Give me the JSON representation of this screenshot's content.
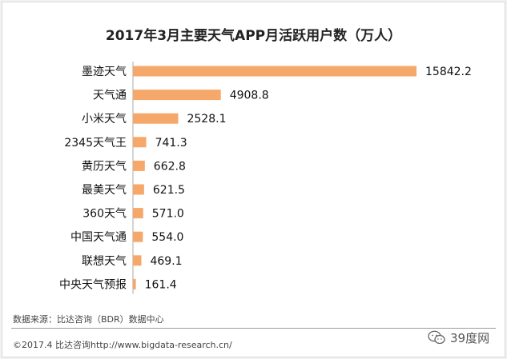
{
  "chart_data": {
    "type": "bar",
    "orientation": "horizontal",
    "title": "2017年3月主要天气APP月活跃用户数（万人）",
    "categories": [
      "墨迹天气",
      "天气通",
      "小米天气",
      "2345天气王",
      "黄历天气",
      "最美天气",
      "360天气",
      "中国天气通",
      "联想天气",
      "中央天气预报"
    ],
    "values": [
      15842.2,
      4908.8,
      2528.1,
      741.3,
      662.8,
      621.5,
      571.0,
      554.0,
      469.1,
      161.4
    ],
    "value_labels": [
      "15842.2",
      "4908.8",
      "2528.1",
      "741.3",
      "662.8",
      "621.5",
      "571.0",
      "554.0",
      "469.1",
      "161.4"
    ],
    "xlim": [
      0,
      15842.2
    ],
    "grid": false,
    "bar_color": "#f5a86a"
  },
  "footer": {
    "source": "数据来源：比达咨询（BDR）数据中心",
    "copyright": "©2017.4    比达咨询http://www.bigdata-research.cn/"
  },
  "watermark": {
    "text": "39度网",
    "icon": "wechat-icon"
  }
}
